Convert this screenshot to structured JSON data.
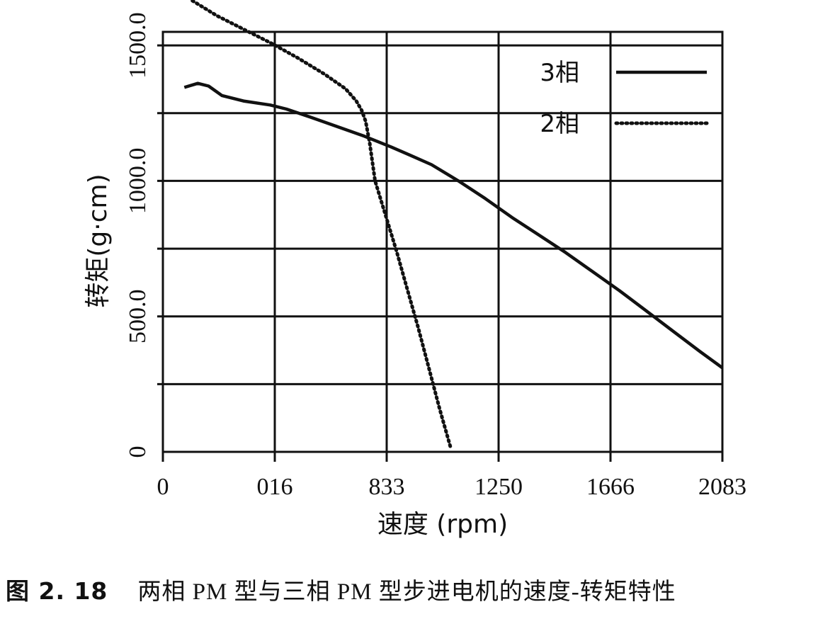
{
  "chart_data": {
    "type": "line",
    "title": "",
    "xlabel": "速度 (rpm)",
    "ylabel": "转矩(g·cm)",
    "x_ticks": [
      "0",
      "016",
      "833",
      "1250",
      "1666",
      "2083"
    ],
    "y_ticks": [
      "0",
      "500.0",
      "1000.0",
      "1500.0"
    ],
    "xlim": [
      0,
      2083
    ],
    "ylim": [
      0,
      1550
    ],
    "grid": true,
    "legend_position": "top-right",
    "series": [
      {
        "name": "3相",
        "style": "solid",
        "color": "#111111",
        "points": [
          [
            80,
            1345
          ],
          [
            130,
            1360
          ],
          [
            170,
            1350
          ],
          [
            220,
            1315
          ],
          [
            300,
            1295
          ],
          [
            400,
            1280
          ],
          [
            460,
            1265
          ],
          [
            550,
            1235
          ],
          [
            650,
            1200
          ],
          [
            750,
            1165
          ],
          [
            850,
            1125
          ],
          [
            920,
            1095
          ],
          [
            1000,
            1060
          ],
          [
            1100,
            1000
          ],
          [
            1200,
            935
          ],
          [
            1300,
            865
          ],
          [
            1400,
            800
          ],
          [
            1500,
            735
          ],
          [
            1600,
            665
          ],
          [
            1700,
            595
          ],
          [
            1800,
            520
          ],
          [
            1900,
            445
          ],
          [
            2000,
            370
          ],
          [
            2083,
            310
          ]
        ]
      },
      {
        "name": "2相",
        "style": "dotted",
        "color": "#111111",
        "points": [
          [
            110,
            1665
          ],
          [
            200,
            1610
          ],
          [
            300,
            1560
          ],
          [
            400,
            1510
          ],
          [
            500,
            1455
          ],
          [
            600,
            1395
          ],
          [
            680,
            1340
          ],
          [
            720,
            1295
          ],
          [
            740,
            1260
          ],
          [
            755,
            1220
          ],
          [
            770,
            1140
          ],
          [
            790,
            1000
          ],
          [
            830,
            870
          ],
          [
            870,
            740
          ],
          [
            910,
            600
          ],
          [
            950,
            460
          ],
          [
            990,
            310
          ],
          [
            1030,
            160
          ],
          [
            1070,
            20
          ]
        ]
      }
    ]
  },
  "caption": {
    "figure_number": "图 2. 18",
    "text": "两相 PM 型与三相 PM 型步进电机的速度-转矩特性"
  }
}
